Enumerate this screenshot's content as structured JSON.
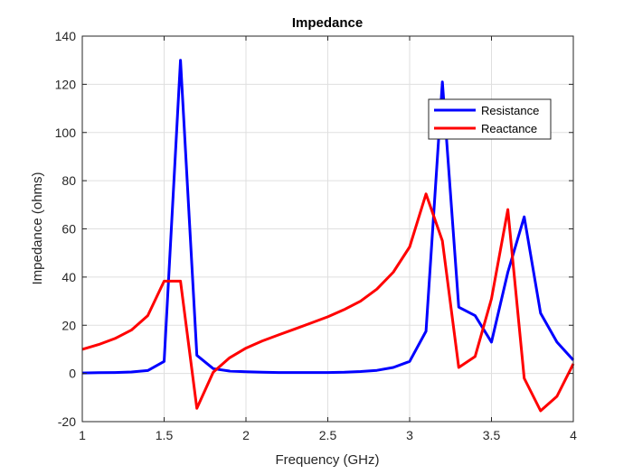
{
  "chart_data": {
    "type": "line",
    "title": "Impedance",
    "xlabel": "Frequency (GHz)",
    "ylabel": "Impedance (ohms)",
    "xlim": [
      1,
      4
    ],
    "ylim": [
      -20,
      140
    ],
    "xticks": [
      "1",
      "1.5",
      "2",
      "2.5",
      "3",
      "3.5",
      "4"
    ],
    "yticks": [
      "-20",
      "0",
      "20",
      "40",
      "60",
      "80",
      "100",
      "120",
      "140"
    ],
    "grid": true,
    "legend_location": "top-right",
    "x": [
      1.0,
      1.1,
      1.2,
      1.3,
      1.4,
      1.5,
      1.6,
      1.7,
      1.8,
      1.9,
      2.0,
      2.1,
      2.2,
      2.3,
      2.4,
      2.5,
      2.6,
      2.7,
      2.8,
      2.9,
      3.0,
      3.1,
      3.2,
      3.3,
      3.4,
      3.5,
      3.6,
      3.7,
      3.8,
      3.9,
      4.0
    ],
    "series": [
      {
        "name": "Resistance",
        "color": "#0000ff",
        "values": [
          0.2,
          0.3,
          0.4,
          0.6,
          1.2,
          5,
          130,
          7.5,
          2,
          1,
          0.7,
          0.5,
          0.4,
          0.4,
          0.4,
          0.4,
          0.5,
          0.8,
          1.3,
          2.5,
          5,
          17.5,
          121,
          27.5,
          24,
          13,
          42,
          65,
          25,
          13,
          5.5
        ]
      },
      {
        "name": "Reactance",
        "color": "#ff0000",
        "values": [
          10,
          12,
          14.5,
          18,
          24,
          38.3,
          38.3,
          -14.5,
          0.5,
          6.5,
          10.5,
          13.5,
          16,
          18.5,
          21,
          23.5,
          26.5,
          30,
          35,
          42,
          52.5,
          74.5,
          55,
          2.5,
          7,
          31,
          68,
          -2,
          -15.5,
          -9.5,
          4
        ]
      }
    ]
  }
}
